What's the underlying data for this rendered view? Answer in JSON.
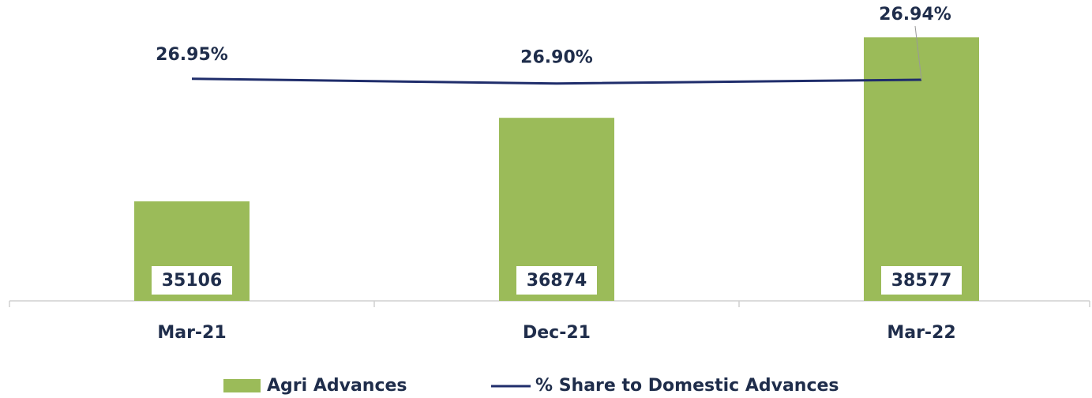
{
  "chart_data": {
    "type": "bar-line",
    "categories": [
      "Mar-21",
      "Dec-21",
      "Mar-22"
    ],
    "series": [
      {
        "name": "Agri Advances",
        "color": "#9bbb59",
        "type": "bar",
        "values": [
          35106,
          36874,
          38577
        ]
      },
      {
        "name": "% Share to Domestic Advances",
        "color": "#1f2d6b",
        "type": "line",
        "axis": "y2",
        "values": [
          26.95,
          26.9,
          26.94
        ],
        "value_labels": [
          "26.95%",
          "26.90%",
          "26.94%"
        ]
      }
    ],
    "ylim": [
      33000,
      39200
    ],
    "y2lim": [
      24.6,
      27.7
    ],
    "legend": "bottom"
  }
}
